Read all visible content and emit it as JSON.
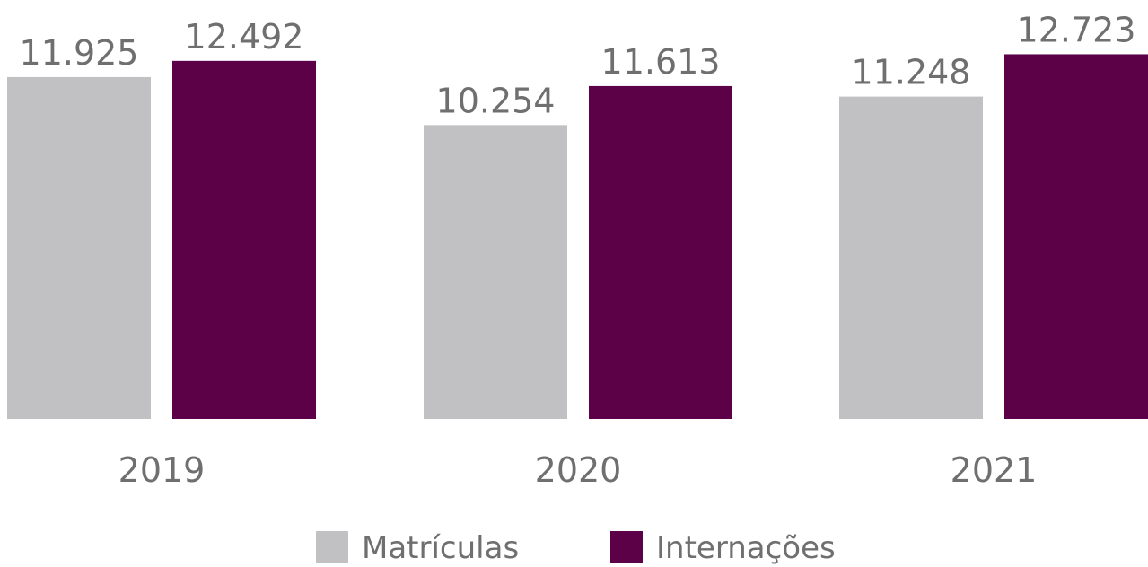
{
  "chart_data": {
    "type": "bar",
    "categories": [
      "2019",
      "2020",
      "2021"
    ],
    "series": [
      {
        "name": "Matrículas",
        "color": "#c1c1c4",
        "values": [
          11925,
          10254,
          11248
        ],
        "labels": [
          "11.925",
          "10.254",
          "11.248"
        ]
      },
      {
        "name": "Internações",
        "color": "#5c0048",
        "values": [
          12492,
          11613,
          12723
        ],
        "labels": [
          "12.492",
          "11.613",
          "12.723"
        ]
      }
    ],
    "title": "",
    "xlabel": "",
    "ylabel": "",
    "ylim": [
      0,
      12800
    ],
    "grid": false,
    "legend": "bottom-center"
  }
}
